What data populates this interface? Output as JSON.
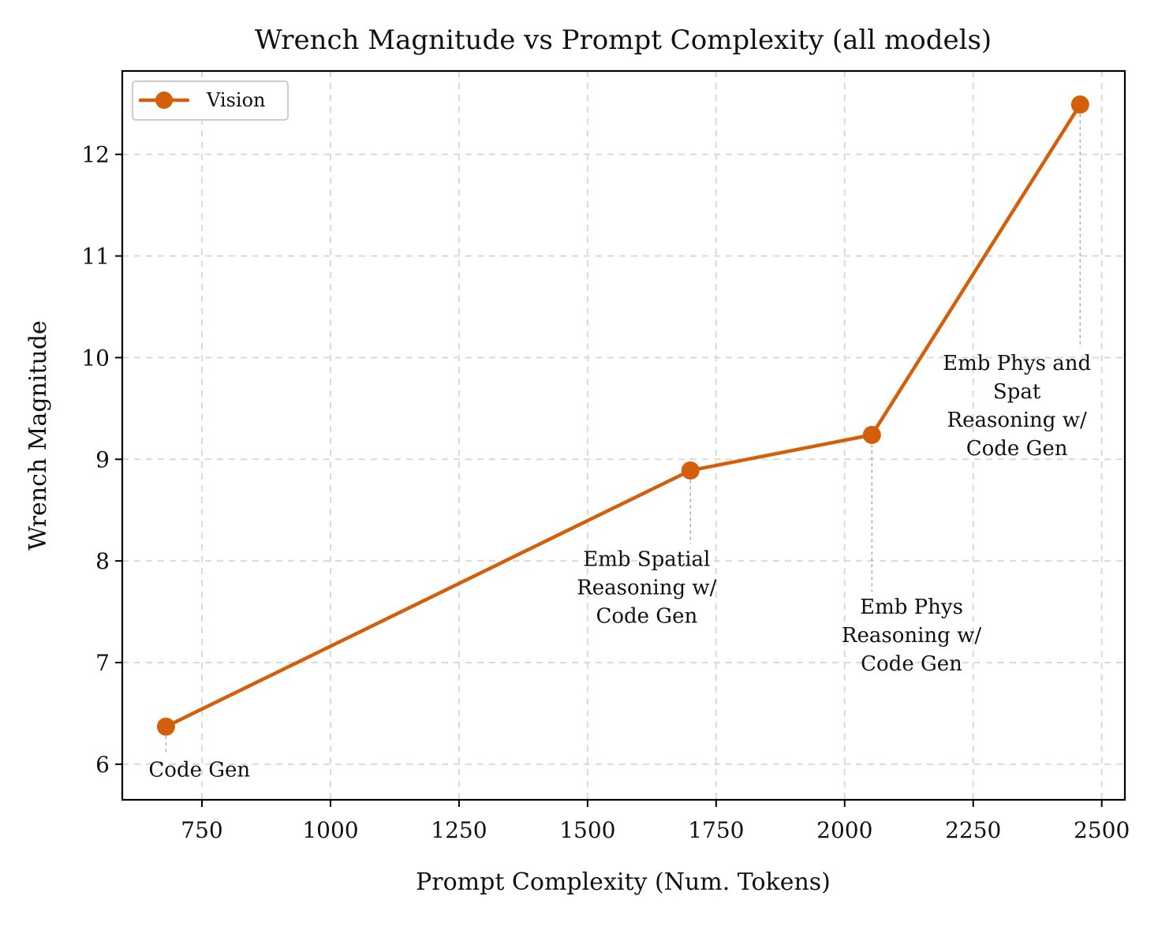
{
  "chart_data": {
    "type": "line",
    "title": "Wrench Magnitude vs Prompt Complexity (all models)",
    "xlabel": "Prompt Complexity (Num. Tokens)",
    "ylabel": "Wrench Magnitude",
    "xlim": [
      595,
      2545
    ],
    "ylim": [
      5.65,
      12.82
    ],
    "xticks": [
      750,
      1000,
      1250,
      1500,
      1750,
      2000,
      2250,
      2500
    ],
    "yticks": [
      6,
      7,
      8,
      9,
      10,
      11,
      12
    ],
    "xtick_labels": [
      "750",
      "1000",
      "1250",
      "1500",
      "1750",
      "2000",
      "2250",
      "2500"
    ],
    "ytick_labels": [
      "6",
      "7",
      "8",
      "9",
      "10",
      "11",
      "12"
    ],
    "grid": true,
    "legend_position": "top-left",
    "series": [
      {
        "name": "Vision",
        "color": "#d35f0a",
        "marker": "circle",
        "x": [
          680,
          1700,
          2053,
          2458
        ],
        "y": [
          6.37,
          8.89,
          9.24,
          12.49
        ]
      }
    ],
    "annotations": [
      {
        "lines": [
          "Code Gen"
        ],
        "x": 680,
        "y": 6.37,
        "label_x": 745,
        "label_y": 5.88
      },
      {
        "lines": [
          "Emb Spatial",
          "Reasoning w/",
          "Code Gen"
        ],
        "x": 1700,
        "y": 8.89,
        "label_x": 1615,
        "label_y": 7.95
      },
      {
        "lines": [
          "Emb Phys",
          "Reasoning w/",
          "Code Gen"
        ],
        "x": 2053,
        "y": 9.24,
        "label_x": 2130,
        "label_y": 7.48
      },
      {
        "lines": [
          "Emb Phys and",
          "Spat",
          "Reasoning w/",
          "Code Gen"
        ],
        "x": 2458,
        "y": 12.49,
        "label_x": 2335,
        "label_y": 9.88
      }
    ]
  }
}
